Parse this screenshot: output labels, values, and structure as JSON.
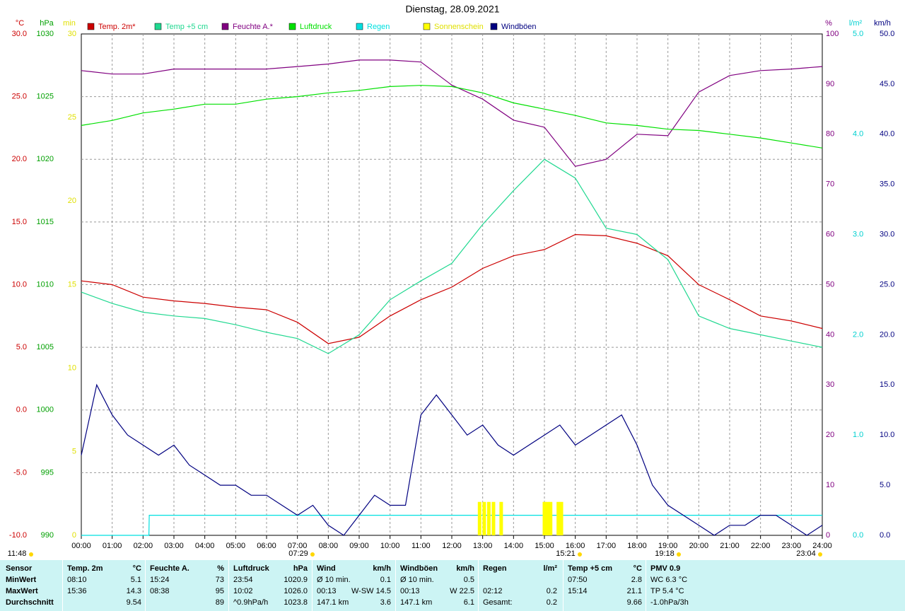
{
  "chart_data": {
    "type": "line",
    "title": "Dienstag, 28.09.2021",
    "xlim": [
      0,
      24
    ],
    "xticks": [
      {
        "value": 0,
        "label": "00:00"
      },
      {
        "value": 1,
        "label": "01:00"
      },
      {
        "value": 2,
        "label": "02:00"
      },
      {
        "value": 3,
        "label": "03:00"
      },
      {
        "value": 4,
        "label": "04:00"
      },
      {
        "value": 5,
        "label": "05:00"
      },
      {
        "value": 6,
        "label": "06:00"
      },
      {
        "value": 7,
        "label": "07:00"
      },
      {
        "value": 8,
        "label": "08:00"
      },
      {
        "value": 9,
        "label": "09:00"
      },
      {
        "value": 10,
        "label": "10:00"
      },
      {
        "value": 11,
        "label": "11:00"
      },
      {
        "value": 12,
        "label": "12:00"
      },
      {
        "value": 13,
        "label": "13:00"
      },
      {
        "value": 14,
        "label": "14:00"
      },
      {
        "value": 15,
        "label": "15:00"
      },
      {
        "value": 16,
        "label": "16:00"
      },
      {
        "value": 17,
        "label": "17:00"
      },
      {
        "value": 18,
        "label": "18:00"
      },
      {
        "value": 19,
        "label": "19:00"
      },
      {
        "value": 20,
        "label": "20:00"
      },
      {
        "value": 21,
        "label": "21:00"
      },
      {
        "value": 22,
        "label": "22:00"
      },
      {
        "value": 23,
        "label": "23:00"
      },
      {
        "value": 24,
        "label": "24:00"
      }
    ],
    "x": [
      0,
      1,
      2,
      3,
      4,
      5,
      6,
      7,
      8,
      9,
      10,
      11,
      12,
      13,
      14,
      15,
      16,
      17,
      18,
      19,
      20,
      21,
      22,
      23,
      24
    ],
    "grid": true,
    "axes": [
      {
        "label": "°C",
        "color": "#cc0000",
        "side": "left",
        "lim": [
          -10,
          30
        ],
        "ticks": [
          {
            "value": -10,
            "label": "-10.0"
          },
          {
            "value": -5,
            "label": "-5.0"
          },
          {
            "value": 0,
            "label": "0.0"
          },
          {
            "value": 5,
            "label": "5.0"
          },
          {
            "value": 10,
            "label": "10.0"
          },
          {
            "value": 15,
            "label": "15.0"
          },
          {
            "value": 20,
            "label": "20.0"
          },
          {
            "value": 25,
            "label": "25.0"
          },
          {
            "value": 30,
            "label": "30.0"
          }
        ]
      },
      {
        "label": "hPa",
        "color": "#00a000",
        "side": "left",
        "lim": [
          990,
          1030
        ],
        "ticks": [
          990,
          995,
          1000,
          1005,
          1010,
          1015,
          1020,
          1025,
          1030
        ]
      },
      {
        "label": "min",
        "color": "#e0e000",
        "side": "left",
        "lim": [
          0,
          30
        ],
        "ticks": [
          0,
          5,
          10,
          15,
          20,
          25,
          30
        ]
      },
      {
        "label": "%",
        "color": "#800080",
        "side": "right",
        "lim": [
          0,
          100
        ],
        "ticks": [
          0,
          10,
          20,
          30,
          40,
          50,
          60,
          70,
          80,
          90,
          100
        ]
      },
      {
        "label": "l/m²",
        "color": "#00d0d0",
        "side": "right",
        "lim": [
          0,
          5
        ],
        "ticks": [
          {
            "value": 0,
            "label": "0.0"
          },
          {
            "value": 1,
            "label": "1.0"
          },
          {
            "value": 2,
            "label": "2.0"
          },
          {
            "value": 3,
            "label": "3.0"
          },
          {
            "value": 4,
            "label": "4.0"
          },
          {
            "value": 5,
            "label": "5.0"
          }
        ]
      },
      {
        "label": "km/h",
        "color": "#000080",
        "side": "right",
        "lim": [
          0,
          50
        ],
        "ticks": [
          {
            "value": 0,
            "label": "0.0"
          },
          {
            "value": 5,
            "label": "5.0"
          },
          {
            "value": 10,
            "label": "10.0"
          },
          {
            "value": 15,
            "label": "15.0"
          },
          {
            "value": 20,
            "label": "20.0"
          },
          {
            "value": 25,
            "label": "25.0"
          },
          {
            "value": 30,
            "label": "30.0"
          },
          {
            "value": 35,
            "label": "35.0"
          },
          {
            "value": 40,
            "label": "40.0"
          },
          {
            "value": 45,
            "label": "45.0"
          },
          {
            "value": 50,
            "label": "50.0"
          }
        ]
      }
    ],
    "series": [
      {
        "name": "Temp. 2m*",
        "color": "#cc0000",
        "axis": 0,
        "type": "line",
        "values": [
          10.3,
          10.0,
          9.0,
          8.7,
          8.5,
          8.2,
          8.0,
          7.0,
          5.3,
          5.8,
          7.5,
          8.8,
          9.8,
          11.3,
          12.3,
          12.8,
          14.0,
          13.9,
          13.3,
          12.3,
          10.0,
          8.8,
          7.5,
          7.1,
          6.5
        ]
      },
      {
        "name": "Temp +5 cm",
        "color": "#20d890",
        "axis": 0,
        "type": "line",
        "values": [
          9.4,
          8.5,
          7.8,
          7.5,
          7.3,
          6.8,
          6.2,
          5.7,
          4.5,
          6.0,
          8.8,
          10.3,
          11.7,
          14.8,
          17.5,
          20.0,
          18.5,
          14.5,
          14.0,
          12.0,
          7.5,
          6.5,
          6.0,
          5.5,
          5.0
        ]
      },
      {
        "name": "Feuchte A.*",
        "color": "#800080",
        "axis": 3,
        "type": "line",
        "values": [
          92.7,
          92,
          92,
          93,
          93,
          93,
          93,
          93.5,
          94,
          94.8,
          94.8,
          94.4,
          89.8,
          87,
          82.8,
          81.4,
          73.6,
          75,
          80,
          79.7,
          88.4,
          91.7,
          92.7,
          93,
          93.5
        ]
      },
      {
        "name": "Luftdruck",
        "color": "#00e000",
        "axis": 1,
        "type": "line",
        "values": [
          1022.7,
          1023.1,
          1023.7,
          1024.0,
          1024.4,
          1024.4,
          1024.8,
          1025.0,
          1025.3,
          1025.5,
          1025.8,
          1025.9,
          1025.8,
          1025.3,
          1024.5,
          1024.0,
          1023.5,
          1022.9,
          1022.7,
          1022.4,
          1022.3,
          1022.0,
          1021.7,
          1021.3,
          1020.9
        ]
      },
      {
        "name": "Regen",
        "color": "#00e0e0",
        "axis": 4,
        "type": "line",
        "x": [
          0,
          2.19,
          2.2,
          24
        ],
        "values": [
          0,
          0,
          0.2,
          0.2
        ]
      },
      {
        "name": "Sonnenschein",
        "color": "#ffff00",
        "axis": 2,
        "type": "bar",
        "x": [
          12.9,
          13.05,
          13.2,
          13.35,
          13.6,
          15.0,
          15.1,
          15.2,
          15.45,
          15.55
        ],
        "values": [
          2,
          2,
          2,
          2,
          2,
          2,
          2,
          2,
          2,
          2
        ]
      },
      {
        "name": "Windböen",
        "color": "#000080",
        "axis": 5,
        "type": "line",
        "x": [
          0,
          0.5,
          1,
          1.5,
          2,
          2.5,
          3,
          3.5,
          4,
          4.5,
          5,
          5.5,
          6,
          6.5,
          7,
          7.5,
          8,
          8.5,
          9,
          9.5,
          10,
          10.5,
          11,
          11.5,
          12,
          12.5,
          13,
          13.5,
          14,
          14.5,
          15,
          15.5,
          16,
          16.5,
          17,
          17.5,
          18,
          18.5,
          19,
          19.5,
          20,
          20.5,
          21,
          21.5,
          22,
          22.5,
          23,
          23.5,
          24
        ],
        "values": [
          8,
          15,
          12,
          10,
          9,
          8,
          9,
          7,
          6,
          5,
          5,
          4,
          4,
          3,
          2,
          3,
          1,
          0,
          2,
          4,
          3,
          3,
          12,
          14,
          12,
          10,
          11,
          9,
          8,
          9,
          10,
          11,
          9,
          10,
          11,
          12,
          9,
          5,
          3,
          2,
          1,
          0,
          1,
          1,
          2,
          2,
          1,
          0,
          1
        ]
      }
    ],
    "annotations": [
      "11:48",
      "07:29",
      "15:21",
      "19:18",
      "23:04"
    ]
  },
  "table": {
    "sections": [
      {
        "header": [
          "Sensor"
        ],
        "rows": [
          [
            "MinWert"
          ],
          [
            "MaxWert"
          ],
          [
            "Durchschnitt"
          ]
        ]
      },
      {
        "header": [
          "Temp. 2m",
          "°C"
        ],
        "rows": [
          [
            "08:10",
            "5.1"
          ],
          [
            "15:36",
            "14.3"
          ],
          [
            "9.54"
          ]
        ]
      },
      {
        "header": [
          "Feuchte A.",
          "%"
        ],
        "rows": [
          [
            "15:24",
            "73"
          ],
          [
            "08:38",
            "95"
          ],
          [
            "89"
          ]
        ]
      },
      {
        "header": [
          "Luftdruck",
          "hPa"
        ],
        "rows": [
          [
            "23:54",
            "1020.9"
          ],
          [
            "10:02",
            "1026.0"
          ],
          [
            "^0.9hPa/h",
            "1023.8"
          ]
        ]
      },
      {
        "header": [
          "Wind",
          "km/h"
        ],
        "rows": [
          [
            "Ø 10 min.",
            "0.1"
          ],
          [
            "00:13",
            "W-SW 14.5"
          ],
          [
            "147.1 km",
            "3.6"
          ]
        ]
      },
      {
        "header": [
          "Windböen",
          "km/h"
        ],
        "rows": [
          [
            "Ø 10 min.",
            "0.5"
          ],
          [
            "00:13",
            "W 22.5"
          ],
          [
            "147.1 km",
            "6.1"
          ]
        ]
      },
      {
        "header": [
          "Regen",
          "l/m²"
        ],
        "rows": [
          [],
          [
            "02:12",
            "0.2"
          ],
          [
            "Gesamt:",
            "0.2"
          ]
        ]
      },
      {
        "header": [
          "Temp +5 cm",
          "°C"
        ],
        "rows": [
          [
            "07:50",
            "2.8"
          ],
          [
            "15:14",
            "21.1"
          ],
          [
            "9.66"
          ]
        ]
      },
      {
        "header": [
          "PMV 0.9"
        ],
        "rows": [
          [
            "WC 6.3 °C"
          ],
          [
            "TP 5.4 °C"
          ],
          [
            "-1.0hPa/3h"
          ]
        ]
      }
    ]
  }
}
